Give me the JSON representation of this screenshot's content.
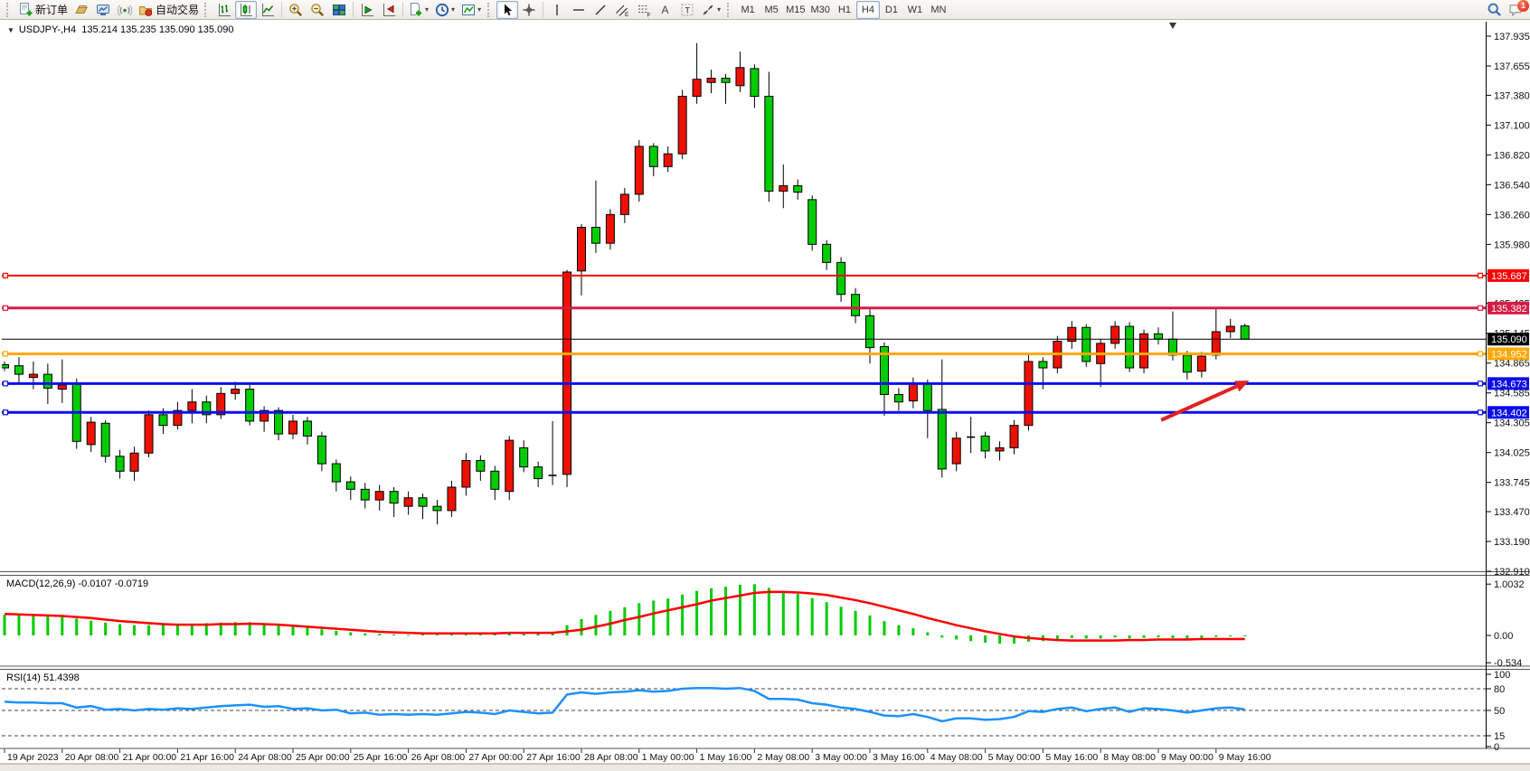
{
  "toolbar": {
    "new_order": "新订单",
    "auto_trading": "自动交易",
    "timeframes": [
      "M1",
      "M5",
      "M15",
      "M30",
      "H1",
      "H4",
      "D1",
      "W1",
      "MN"
    ],
    "active_timeframe": "H4",
    "notification_badge": "1",
    "icon_names": [
      "new-order-document-plus",
      "gold-bar",
      "expert-monitor",
      "signal-broadcast",
      "autotrade-folder",
      "chart-bars",
      "chart-candlesticks",
      "chart-line",
      "zoom-in",
      "zoom-out",
      "tile-windows",
      "auto-scroll",
      "chart-shift",
      "indicators-add",
      "periods-clock",
      "template-chart",
      "cursor",
      "crosshair",
      "vertical-line",
      "horizontal-line",
      "trendline",
      "equidistant-channel",
      "fibonacci",
      "text",
      "text-label",
      "arrows-shapes",
      "search",
      "chat-notification"
    ]
  },
  "chart": {
    "symbol_period": "USDJPY-,H4",
    "ohlc_text": "135.214 135.235 135.090 135.090"
  },
  "chart_data": {
    "type": "candlestick",
    "title": "USDJPY-,H4 135.214 135.235 135.090 135.090",
    "convention": "red = bullish, green = bearish",
    "bull_color": "#ee1100",
    "bear_color": "#00cc00",
    "wick_color": "#000000",
    "y_ticks": [
      "137.935",
      "137.655",
      "137.380",
      "137.100",
      "136.820",
      "136.540",
      "136.260",
      "135.980",
      "135.705",
      "135.425",
      "135.145",
      "134.865",
      "134.585",
      "134.305",
      "134.025",
      "133.745",
      "133.470",
      "133.190",
      "132.910"
    ],
    "x_labels": [
      "19 Apr 2023",
      "20 Apr 08:00",
      "21 Apr 00:00",
      "21 Apr 16:00",
      "24 Apr 08:00",
      "25 Apr 00:00",
      "25 Apr 16:00",
      "26 Apr 08:00",
      "27 Apr 00:00",
      "27 Apr 16:00",
      "28 Apr 08:00",
      "1 May 00:00",
      "1 May 16:00",
      "2 May 08:00",
      "3 May 00:00",
      "3 May 16:00",
      "4 May 08:00",
      "5 May 00:00",
      "5 May 16:00",
      "8 May 08:00",
      "9 May 00:00",
      "9 May 16:00"
    ],
    "bars_per_label": 4,
    "candles": [
      [
        134.85,
        134.88,
        134.79,
        134.82
      ],
      [
        134.84,
        134.92,
        134.68,
        134.76
      ],
      [
        134.73,
        134.88,
        134.62,
        134.76
      ],
      [
        134.76,
        134.86,
        134.48,
        134.63
      ],
      [
        134.62,
        134.9,
        134.49,
        134.66
      ],
      [
        134.68,
        134.72,
        134.06,
        134.13
      ],
      [
        134.1,
        134.36,
        134.03,
        134.31
      ],
      [
        134.3,
        134.33,
        133.93,
        133.99
      ],
      [
        133.99,
        134.05,
        133.78,
        133.85
      ],
      [
        133.85,
        134.08,
        133.76,
        134.02
      ],
      [
        134.02,
        134.42,
        133.98,
        134.38
      ],
      [
        134.38,
        134.44,
        134.2,
        134.28
      ],
      [
        134.28,
        134.5,
        134.24,
        134.42
      ],
      [
        134.42,
        134.62,
        134.3,
        134.5
      ],
      [
        134.5,
        134.56,
        134.3,
        134.38
      ],
      [
        134.38,
        134.64,
        134.34,
        134.58
      ],
      [
        134.58,
        134.69,
        134.52,
        134.62
      ],
      [
        134.62,
        134.66,
        134.28,
        134.32
      ],
      [
        134.32,
        134.46,
        134.22,
        134.42
      ],
      [
        134.42,
        134.45,
        134.14,
        134.2
      ],
      [
        134.2,
        134.38,
        134.15,
        134.32
      ],
      [
        134.32,
        134.36,
        134.1,
        134.18
      ],
      [
        134.18,
        134.22,
        133.85,
        133.92
      ],
      [
        133.92,
        133.96,
        133.66,
        133.75
      ],
      [
        133.75,
        133.8,
        133.58,
        133.68
      ],
      [
        133.68,
        133.74,
        133.5,
        133.58
      ],
      [
        133.58,
        133.72,
        133.48,
        133.66
      ],
      [
        133.66,
        133.7,
        133.42,
        133.55
      ],
      [
        133.52,
        133.66,
        133.44,
        133.6
      ],
      [
        133.6,
        133.64,
        133.4,
        133.52
      ],
      [
        133.52,
        133.58,
        133.35,
        133.48
      ],
      [
        133.48,
        133.76,
        133.42,
        133.7
      ],
      [
        133.7,
        134.02,
        133.62,
        133.95
      ],
      [
        133.95,
        134.0,
        133.76,
        133.85
      ],
      [
        133.85,
        133.9,
        133.58,
        133.68
      ],
      [
        133.66,
        134.18,
        133.58,
        134.14
      ],
      [
        134.07,
        134.14,
        133.84,
        133.89
      ],
      [
        133.89,
        133.94,
        133.7,
        133.78
      ],
      [
        133.81,
        134.32,
        133.72,
        133.81
      ],
      [
        133.82,
        135.74,
        133.7,
        135.72
      ],
      [
        135.73,
        136.17,
        135.5,
        136.14
      ],
      [
        136.14,
        136.58,
        135.9,
        135.99
      ],
      [
        135.99,
        136.31,
        135.93,
        136.26
      ],
      [
        136.26,
        136.51,
        136.18,
        136.45
      ],
      [
        136.45,
        136.96,
        136.38,
        136.9
      ],
      [
        136.9,
        136.93,
        136.62,
        136.71
      ],
      [
        136.71,
        136.9,
        136.66,
        136.83
      ],
      [
        136.83,
        137.43,
        136.78,
        137.37
      ],
      [
        137.37,
        137.87,
        137.3,
        137.53
      ],
      [
        137.5,
        137.62,
        137.4,
        137.54
      ],
      [
        137.54,
        137.58,
        137.3,
        137.5
      ],
      [
        137.47,
        137.79,
        137.41,
        137.64
      ],
      [
        137.63,
        137.67,
        137.26,
        137.37
      ],
      [
        137.37,
        137.6,
        136.38,
        136.48
      ],
      [
        136.48,
        136.73,
        136.32,
        136.53
      ],
      [
        136.53,
        136.59,
        136.4,
        136.47
      ],
      [
        136.4,
        136.44,
        135.92,
        135.98
      ],
      [
        135.98,
        136.02,
        135.74,
        135.81
      ],
      [
        135.81,
        135.86,
        135.44,
        135.51
      ],
      [
        135.51,
        135.57,
        135.24,
        135.31
      ],
      [
        135.31,
        135.37,
        134.86,
        135.01
      ],
      [
        135.02,
        135.06,
        134.37,
        134.57
      ],
      [
        134.57,
        134.63,
        134.42,
        134.5
      ],
      [
        134.51,
        134.73,
        134.44,
        134.68
      ],
      [
        134.68,
        134.71,
        134.16,
        134.42
      ],
      [
        134.43,
        134.9,
        133.79,
        133.87
      ],
      [
        133.92,
        134.22,
        133.85,
        134.16
      ],
      [
        134.17,
        134.36,
        134.02,
        134.17
      ],
      [
        134.18,
        134.22,
        133.97,
        134.04
      ],
      [
        134.04,
        134.13,
        133.95,
        134.07
      ],
      [
        134.07,
        134.33,
        134.01,
        134.28
      ],
      [
        134.28,
        134.95,
        134.23,
        134.88
      ],
      [
        134.88,
        134.92,
        134.62,
        134.82
      ],
      [
        134.82,
        135.12,
        134.77,
        135.07
      ],
      [
        135.07,
        135.26,
        135.0,
        135.2
      ],
      [
        135.2,
        135.23,
        134.83,
        134.88
      ],
      [
        134.86,
        135.09,
        134.64,
        135.05
      ],
      [
        135.05,
        135.26,
        135.0,
        135.21
      ],
      [
        135.21,
        135.25,
        134.78,
        134.82
      ],
      [
        134.82,
        135.18,
        134.77,
        135.14
      ],
      [
        135.14,
        135.2,
        135.04,
        135.09
      ],
      [
        135.09,
        135.35,
        134.89,
        134.94
      ],
      [
        134.94,
        134.98,
        134.71,
        134.78
      ],
      [
        134.79,
        134.97,
        134.73,
        134.93
      ],
      [
        134.94,
        135.38,
        134.9,
        135.16
      ],
      [
        135.16,
        135.28,
        135.1,
        135.21
      ],
      [
        135.214,
        135.235,
        135.09,
        135.09
      ]
    ],
    "hlines": [
      {
        "label": "135.687",
        "price": 135.687,
        "color": "#f80000",
        "width": 2,
        "handles": true
      },
      {
        "label": "135.382",
        "price": 135.382,
        "color": "#d81b45",
        "width": 3,
        "handles": true
      },
      {
        "label": "135.090",
        "price": 135.09,
        "color": "#000000",
        "width": 1,
        "handles": false
      },
      {
        "label": "134.952",
        "price": 134.952,
        "color": "#ffa800",
        "width": 3,
        "handles": true
      },
      {
        "label": "134.673",
        "price": 134.673,
        "color": "#0d0df0",
        "width": 3,
        "handles": true
      },
      {
        "label": "134.402",
        "price": 134.402,
        "color": "#0d0df0",
        "width": 3,
        "handles": true
      }
    ],
    "macd": {
      "label": "MACD(12,26,9) -0.0107 -0.0719",
      "ticks": [
        "1.0032",
        "0.00",
        "-0.534"
      ],
      "hist_color": "#00cc00",
      "signal_color": "#ff0000",
      "hist": [
        0.4,
        0.41,
        0.4,
        0.38,
        0.36,
        0.33,
        0.29,
        0.25,
        0.22,
        0.2,
        0.2,
        0.21,
        0.22,
        0.23,
        0.24,
        0.25,
        0.26,
        0.26,
        0.24,
        0.21,
        0.18,
        0.15,
        0.12,
        0.09,
        0.06,
        0.04,
        0.03,
        0.02,
        0.01,
        0.02,
        0.02,
        0.03,
        0.05,
        0.06,
        0.05,
        0.07,
        0.06,
        0.04,
        0.05,
        0.2,
        0.32,
        0.4,
        0.48,
        0.55,
        0.63,
        0.68,
        0.72,
        0.8,
        0.87,
        0.92,
        0.95,
        0.99,
        1.0,
        0.93,
        0.87,
        0.81,
        0.73,
        0.65,
        0.56,
        0.48,
        0.39,
        0.28,
        0.2,
        0.14,
        0.06,
        -0.04,
        -0.08,
        -0.11,
        -0.14,
        -0.16,
        -0.16,
        -0.12,
        -0.11,
        -0.08,
        -0.05,
        -0.06,
        -0.06,
        -0.04,
        -0.06,
        -0.05,
        -0.04,
        -0.05,
        -0.06,
        -0.05,
        -0.03,
        -0.02,
        -0.01
      ],
      "signal": [
        0.42,
        0.41,
        0.4,
        0.39,
        0.38,
        0.36,
        0.34,
        0.31,
        0.28,
        0.26,
        0.24,
        0.22,
        0.21,
        0.21,
        0.21,
        0.22,
        0.22,
        0.23,
        0.22,
        0.21,
        0.19,
        0.17,
        0.15,
        0.13,
        0.11,
        0.09,
        0.07,
        0.06,
        0.05,
        0.04,
        0.04,
        0.04,
        0.04,
        0.04,
        0.04,
        0.05,
        0.05,
        0.05,
        0.05,
        0.08,
        0.11,
        0.17,
        0.23,
        0.3,
        0.36,
        0.43,
        0.49,
        0.55,
        0.61,
        0.68,
        0.73,
        0.78,
        0.83,
        0.85,
        0.85,
        0.84,
        0.82,
        0.79,
        0.74,
        0.69,
        0.63,
        0.56,
        0.49,
        0.42,
        0.34,
        0.27,
        0.2,
        0.14,
        0.08,
        0.03,
        -0.02,
        -0.05,
        -0.07,
        -0.09,
        -0.1,
        -0.1,
        -0.1,
        -0.1,
        -0.09,
        -0.09,
        -0.08,
        -0.08,
        -0.08,
        -0.07,
        -0.07,
        -0.07,
        -0.07
      ]
    },
    "rsi": {
      "label": "RSI(14) 51.4398",
      "ticks": [
        "100",
        "80",
        "50",
        "15",
        "0"
      ],
      "levels": [
        80,
        50,
        15
      ],
      "color": "#1e90ff",
      "values": [
        62,
        61,
        61,
        60,
        60,
        54,
        56,
        51,
        52,
        50,
        52,
        51,
        53,
        52,
        54,
        56,
        57,
        58,
        55,
        56,
        52,
        53,
        50,
        51,
        46,
        47,
        44,
        45,
        44,
        45,
        44,
        46,
        48,
        47,
        45,
        50,
        48,
        46,
        47,
        72,
        75,
        73,
        75,
        76,
        78,
        76,
        77,
        80,
        81,
        81,
        80,
        81,
        77,
        66,
        66,
        65,
        60,
        58,
        54,
        52,
        48,
        43,
        42,
        45,
        41,
        35,
        39,
        39,
        37,
        38,
        41,
        49,
        48,
        52,
        54,
        49,
        52,
        54,
        48,
        53,
        52,
        50,
        47,
        50,
        53,
        54,
        51.4
      ]
    },
    "arrow": {
      "from": {
        "bar": 80.2,
        "price": 134.33
      },
      "to": {
        "bar": 86.3,
        "price": 134.7
      },
      "color": "#e02222"
    },
    "shift_marker_bar": 81
  }
}
